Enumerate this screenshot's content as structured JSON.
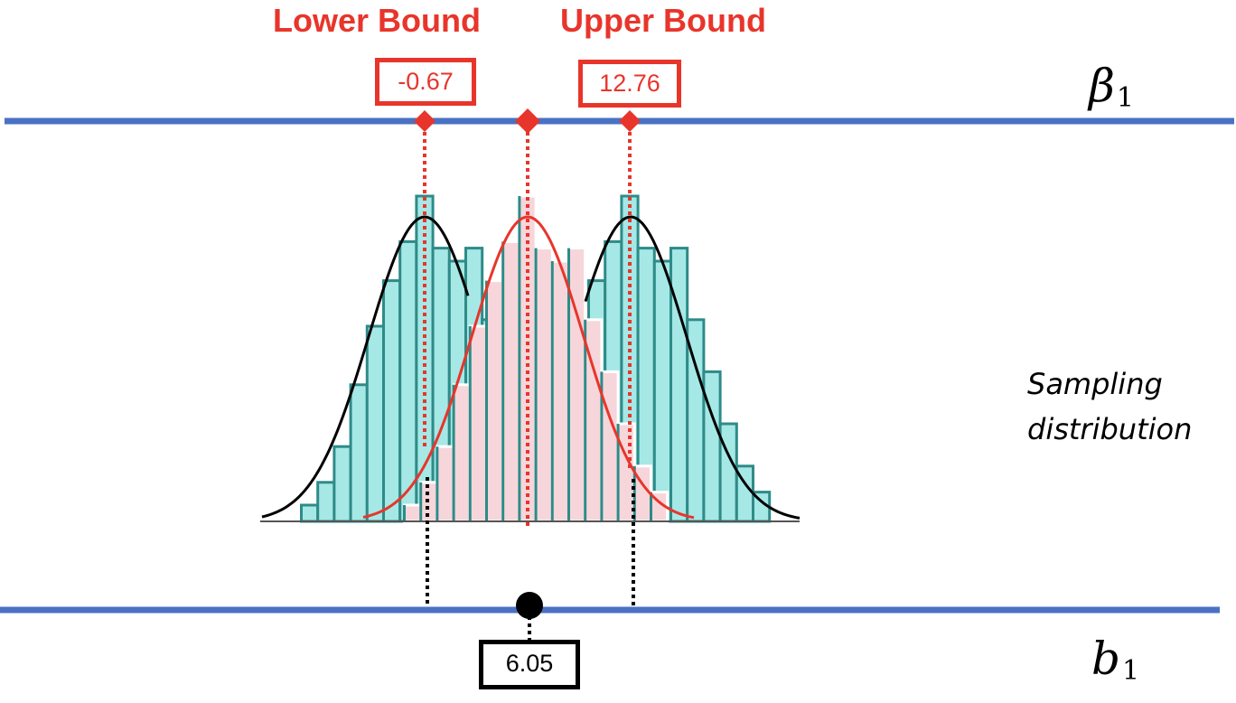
{
  "lower_bound": {
    "title": "Lower Bound",
    "value": "-0.67"
  },
  "upper_bound": {
    "title": "Upper Bound",
    "value": "12.76"
  },
  "sample_estimate": {
    "value": "6.05"
  },
  "axes": {
    "top": {
      "symbol": "β",
      "subscript": "1"
    },
    "bottom": {
      "symbol": "b",
      "subscript": "1"
    }
  },
  "side_label": {
    "line1": "Sampling",
    "line2": "distribution"
  },
  "colors": {
    "axis_line": "#4a72c4",
    "bound_red": "#e8352b",
    "teal_fill": "#a6e8e6",
    "teal_stroke": "#2e8b88",
    "pink_fill": "#f6d6da",
    "pink_stroke": "#ffffff",
    "curve_black": "#000000",
    "curve_red": "#e8352b"
  },
  "histogram_heights": [
    0.05,
    0.12,
    0.23,
    0.42,
    0.6,
    0.74,
    0.86,
    1.0,
    0.84,
    0.8,
    0.84,
    0.62,
    0.46,
    0.3,
    0.17,
    0.09
  ]
}
